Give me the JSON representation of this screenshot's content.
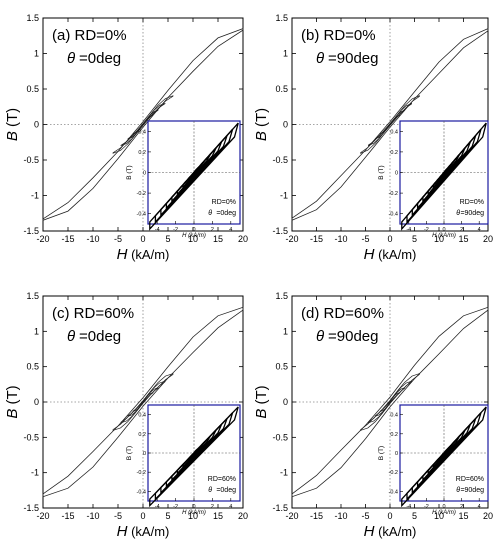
{
  "chart_data": [
    {
      "type": "line",
      "label": "(a) RD=0%",
      "theta_label": "=0deg",
      "xlabel": "H (kA/m)",
      "ylabel": "B (T)",
      "xlim": [
        -20,
        20
      ],
      "ylim": [
        -1.5,
        1.5
      ],
      "xticks": [
        "-20",
        "-15",
        "-10",
        "-5",
        "0",
        "5",
        "10",
        "15",
        "20"
      ],
      "yticks": [
        "-1.5",
        "-1",
        "-0.5",
        "0",
        "0.5",
        "1",
        "1.5"
      ],
      "series": [
        {
          "x": [
            -20,
            -15,
            -10,
            -5,
            0,
            5,
            10,
            15,
            20
          ],
          "y_upper": [
            -1.33,
            -1.1,
            -0.75,
            -0.38,
            0.04,
            0.48,
            0.9,
            1.22,
            1.35
          ],
          "y_lower": [
            -1.35,
            -1.22,
            -0.9,
            -0.48,
            -0.04,
            0.38,
            0.75,
            1.1,
            1.33
          ]
        }
      ],
      "inset": {
        "text1": "RD=0%",
        "text2": "=0deg",
        "ylabel": "B (T)",
        "xlabel": "H (kA/m)",
        "xticks": [
          "-4",
          "-2",
          "0",
          "2",
          "4"
        ],
        "yticks": [
          "-0.4",
          "-0.2",
          "0",
          "0.2",
          "0.4"
        ],
        "loops": [
          0.6,
          1.2,
          1.8,
          2.4,
          3.0,
          3.6,
          4.2,
          4.8
        ]
      }
    },
    {
      "type": "line",
      "label": "(b) RD=0%",
      "theta_label": "=90deg",
      "xlabel": "H (kA/m)",
      "ylabel": "B (T)",
      "xlim": [
        -20,
        20
      ],
      "ylim": [
        -1.5,
        1.5
      ],
      "xticks": [
        "-20",
        "-15",
        "-10",
        "-5",
        "0",
        "5",
        "10",
        "15",
        "20"
      ],
      "yticks": [
        "-1.5",
        "-1",
        "-0.5",
        "0",
        "0.5",
        "1",
        "1.5"
      ],
      "series": [
        {
          "x": [
            -20,
            -15,
            -10,
            -5,
            0,
            5,
            10,
            15,
            20
          ],
          "y_upper": [
            -1.32,
            -1.08,
            -0.72,
            -0.36,
            0.04,
            0.46,
            0.88,
            1.2,
            1.35
          ],
          "y_lower": [
            -1.35,
            -1.2,
            -0.88,
            -0.46,
            -0.04,
            0.36,
            0.72,
            1.08,
            1.32
          ]
        }
      ],
      "inset": {
        "text1": "RD=0%",
        "text2": "=90deg",
        "ylabel": "B (T)",
        "xlabel": "H (kA/m)",
        "xticks": [
          "-4",
          "-2",
          "0",
          "2",
          "4"
        ],
        "yticks": [
          "-0.4",
          "-0.2",
          "0",
          "0.2",
          "0.4"
        ],
        "loops": [
          0.6,
          1.2,
          1.8,
          2.4,
          3.0,
          3.6,
          4.2,
          4.8
        ]
      }
    },
    {
      "type": "line",
      "label": "(c) RD=60%",
      "theta_label": "=0deg",
      "xlabel": "H (kA/m)",
      "ylabel": "B (T)",
      "xlim": [
        -20,
        20
      ],
      "ylim": [
        -1.5,
        1.5
      ],
      "xticks": [
        "-20",
        "-15",
        "-10",
        "-5",
        "0",
        "5",
        "10",
        "15",
        "20"
      ],
      "yticks": [
        "-1.5",
        "-1",
        "-0.5",
        "0",
        "0.5",
        "1",
        "1.5"
      ],
      "series": [
        {
          "x": [
            -20,
            -15,
            -10,
            -5,
            0,
            5,
            10,
            15,
            20
          ],
          "y_upper": [
            -1.3,
            -1.05,
            -0.7,
            -0.34,
            0.06,
            0.5,
            0.92,
            1.22,
            1.34
          ],
          "y_lower": [
            -1.34,
            -1.22,
            -0.92,
            -0.5,
            -0.06,
            0.34,
            0.7,
            1.05,
            1.3
          ]
        }
      ],
      "inset": {
        "text1": "RD=60%",
        "text2": "=0deg",
        "ylabel": "B (T)",
        "xlabel": "H (kA/m)",
        "xticks": [
          "-4",
          "-2",
          "0",
          "2",
          "4"
        ],
        "yticks": [
          "-0.4",
          "-0.2",
          "0",
          "0.2",
          "0.4"
        ],
        "loops": [
          0.6,
          1.2,
          1.8,
          2.4,
          3.0,
          3.6,
          4.2,
          4.8
        ]
      }
    },
    {
      "type": "line",
      "label": "(d) RD=60%",
      "theta_label": "=90deg",
      "xlabel": "H (kA/m)",
      "ylabel": "B (T)",
      "xlim": [
        -20,
        20
      ],
      "ylim": [
        -1.5,
        1.5
      ],
      "xticks": [
        "-20",
        "-15",
        "-10",
        "-5",
        "0",
        "5",
        "10",
        "15",
        "20"
      ],
      "yticks": [
        "-1.5",
        "-1",
        "-0.5",
        "0",
        "0.5",
        "1",
        "1.5"
      ],
      "series": [
        {
          "x": [
            -20,
            -15,
            -10,
            -5,
            0,
            5,
            10,
            15,
            20
          ],
          "y_upper": [
            -1.3,
            -1.04,
            -0.68,
            -0.33,
            0.07,
            0.52,
            0.93,
            1.22,
            1.34
          ],
          "y_lower": [
            -1.34,
            -1.22,
            -0.93,
            -0.52,
            -0.07,
            0.33,
            0.68,
            1.04,
            1.3
          ]
        }
      ],
      "inset": {
        "text1": "RD=60%",
        "text2": "=90deg",
        "ylabel": "B (T)",
        "xlabel": "H (kA/m)",
        "xticks": [
          "-4",
          "-2",
          "0",
          "2",
          "4"
        ],
        "yticks": [
          "-0.4",
          "-0.2",
          "0",
          "0.2",
          "0.4"
        ],
        "loops": [
          0.6,
          1.2,
          1.8,
          2.4,
          3.0,
          3.6,
          4.2,
          4.8
        ]
      }
    }
  ]
}
